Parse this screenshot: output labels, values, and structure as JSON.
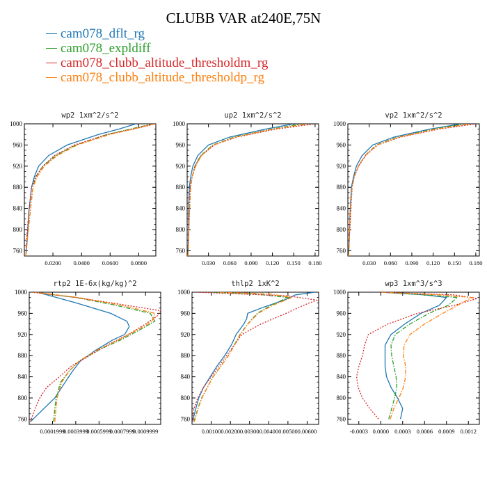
{
  "title": "CLUBB VAR at240E,75N",
  "legend": [
    {
      "label": "cam078_dflt_rg",
      "color": "#1f77b4"
    },
    {
      "label": "cam078_expldiff",
      "color": "#2ca02c"
    },
    {
      "label": "cam078_clubb_altitude_thresholdm_rg",
      "color": "#d62728"
    },
    {
      "label": "cam078_clubb_altitude_thresholdp_rg",
      "color": "#ff7f0e"
    }
  ],
  "chart_data": [
    {
      "type": "line",
      "title": "wp2 1xm^2/s^2",
      "ylim": [
        1000,
        750
      ],
      "yticks": [
        "760",
        "800",
        "840",
        "880",
        "920",
        "960",
        "1000"
      ],
      "xlim": [
        0,
        0.092
      ],
      "xticks": [
        "0.0200",
        "0.0400",
        "0.0600",
        "0.0800"
      ],
      "series": [
        {
          "y": [
            750,
            780,
            830,
            880,
            900,
            920,
            940,
            960,
            980,
            990,
            1000
          ],
          "x": [
            0.001,
            0.002,
            0.003,
            0.005,
            0.007,
            0.01,
            0.017,
            0.03,
            0.052,
            0.066,
            0.078
          ]
        },
        {
          "y": [
            750,
            780,
            830,
            880,
            900,
            920,
            940,
            960,
            980,
            990,
            1000
          ],
          "x": [
            0.001,
            0.002,
            0.004,
            0.006,
            0.008,
            0.013,
            0.022,
            0.036,
            0.058,
            0.074,
            0.09
          ]
        },
        {
          "y": [
            750,
            780,
            830,
            880,
            900,
            920,
            940,
            960,
            980,
            990,
            1000
          ],
          "x": [
            0.001,
            0.0015,
            0.003,
            0.005,
            0.008,
            0.013,
            0.021,
            0.035,
            0.058,
            0.076,
            0.092
          ]
        },
        {
          "y": [
            750,
            780,
            830,
            880,
            900,
            920,
            940,
            960,
            980,
            990,
            1000
          ],
          "x": [
            0.001,
            0.002,
            0.004,
            0.006,
            0.009,
            0.014,
            0.023,
            0.037,
            0.06,
            0.076,
            0.091
          ]
        }
      ]
    },
    {
      "type": "line",
      "title": "up2 1xm^2/s^2",
      "ylim": [
        1000,
        750
      ],
      "yticks": [
        "760",
        "800",
        "840",
        "880",
        "920",
        "960",
        "1000"
      ],
      "xlim": [
        0,
        0.185
      ],
      "xticks": [
        "0.030",
        "0.060",
        "0.090",
        "0.120",
        "0.150",
        "0.180"
      ],
      "series": [
        {
          "y": [
            750,
            780,
            830,
            880,
            900,
            920,
            940,
            960,
            975,
            990,
            1000
          ],
          "x": [
            0.001,
            0.002,
            0.002,
            0.003,
            0.005,
            0.008,
            0.015,
            0.03,
            0.06,
            0.11,
            0.15
          ]
        },
        {
          "y": [
            750,
            780,
            830,
            880,
            900,
            920,
            940,
            960,
            975,
            990,
            1000
          ],
          "x": [
            0.001,
            0.002,
            0.003,
            0.005,
            0.007,
            0.011,
            0.019,
            0.036,
            0.066,
            0.118,
            0.162
          ]
        },
        {
          "y": [
            750,
            780,
            830,
            880,
            900,
            920,
            940,
            960,
            975,
            990,
            1000
          ],
          "x": [
            0.001,
            0.002,
            0.003,
            0.004,
            0.007,
            0.011,
            0.02,
            0.038,
            0.07,
            0.125,
            0.18
          ]
        },
        {
          "y": [
            750,
            780,
            830,
            880,
            900,
            920,
            940,
            960,
            975,
            990,
            1000
          ],
          "x": [
            0.001,
            0.002,
            0.003,
            0.005,
            0.007,
            0.012,
            0.02,
            0.037,
            0.068,
            0.12,
            0.17
          ]
        }
      ]
    },
    {
      "type": "line",
      "title": "vp2 1xm^2/s^2",
      "ylim": [
        1000,
        750
      ],
      "yticks": [
        "760",
        "800",
        "840",
        "880",
        "920",
        "960",
        "1000"
      ],
      "xlim": [
        0,
        0.185
      ],
      "xticks": [
        "0.030",
        "0.060",
        "0.090",
        "0.120",
        "0.150",
        "0.180"
      ],
      "series": [
        {
          "y": [
            750,
            780,
            830,
            880,
            900,
            920,
            940,
            960,
            975,
            990,
            1000
          ],
          "x": [
            0.001,
            0.002,
            0.003,
            0.005,
            0.008,
            0.012,
            0.02,
            0.035,
            0.065,
            0.115,
            0.16
          ]
        },
        {
          "y": [
            750,
            780,
            830,
            880,
            900,
            920,
            940,
            960,
            975,
            990,
            1000
          ],
          "x": [
            0.001,
            0.002,
            0.003,
            0.006,
            0.009,
            0.015,
            0.024,
            0.04,
            0.07,
            0.12,
            0.165
          ]
        },
        {
          "y": [
            750,
            780,
            830,
            880,
            900,
            920,
            940,
            960,
            975,
            990,
            1000
          ],
          "x": [
            0.001,
            0.002,
            0.004,
            0.006,
            0.009,
            0.015,
            0.025,
            0.042,
            0.074,
            0.128,
            0.18
          ]
        },
        {
          "y": [
            750,
            780,
            830,
            880,
            900,
            920,
            940,
            960,
            975,
            990,
            1000
          ],
          "x": [
            0.001,
            0.002,
            0.003,
            0.006,
            0.009,
            0.015,
            0.024,
            0.041,
            0.072,
            0.124,
            0.172
          ]
        }
      ]
    },
    {
      "type": "line",
      "title": "rtp2 1E-6x(kg/kg)^2",
      "ylim": [
        1000,
        750
      ],
      "yticks": [
        "760",
        "800",
        "840",
        "880",
        "920",
        "960",
        "1000"
      ],
      "xlim": [
        0,
        0.00113
      ],
      "xticks": [
        "0.0001999",
        "0.0003999",
        "0.0005999",
        "0.0007999",
        "0.0009999"
      ],
      "series": [
        {
          "y": [
            755,
            800,
            830,
            850,
            870,
            890,
            910,
            920,
            935,
            945,
            960,
            980,
            1000
          ],
          "x": [
            1e-05,
            0.00022,
            0.00031,
            0.00037,
            0.00044,
            0.00057,
            0.00072,
            0.00082,
            0.00086,
            0.00084,
            0.0007,
            0.0004,
            7e-05
          ]
        },
        {
          "y": [
            755,
            780,
            800,
            830,
            850,
            870,
            890,
            910,
            930,
            945,
            960,
            975,
            990,
            1000
          ],
          "x": [
            0.00021,
            0.00022,
            0.00023,
            0.00027,
            0.00034,
            0.00043,
            0.00059,
            0.00079,
            0.00096,
            0.00108,
            0.00104,
            0.00075,
            0.0004,
            3e-05
          ]
        },
        {
          "y": [
            755,
            780,
            800,
            820,
            840,
            860,
            880,
            900,
            920,
            940,
            955,
            965,
            980,
            990,
            1000
          ],
          "x": [
            1e-05,
            5e-05,
            9e-05,
            0.00015,
            0.00026,
            0.00036,
            0.00052,
            0.00067,
            0.00085,
            0.001,
            0.0011,
            0.00113,
            0.0007,
            0.0004,
            2e-05
          ]
        },
        {
          "y": [
            755,
            780,
            800,
            830,
            850,
            870,
            890,
            910,
            930,
            945,
            960,
            975,
            990,
            1000
          ],
          "x": [
            0.00022,
            0.00023,
            0.00024,
            0.00028,
            0.00034,
            0.00043,
            0.00058,
            0.00077,
            0.00094,
            0.00106,
            0.00108,
            0.0008,
            0.00042,
            5e-05
          ]
        }
      ]
    },
    {
      "type": "line",
      "title": "thlp2 1xK^2",
      "ylim": [
        1000,
        750
      ],
      "yticks": [
        "760",
        "800",
        "840",
        "880",
        "920",
        "960",
        "1000"
      ],
      "xlim": [
        0,
        0.0066
      ],
      "xticks": [
        "0.00100",
        "0.00200",
        "0.00300",
        "0.00400",
        "0.00500",
        "0.00600"
      ],
      "series": [
        {
          "y": [
            755,
            780,
            800,
            820,
            840,
            860,
            880,
            900,
            920,
            940,
            950,
            960,
            970,
            985,
            995,
            1000
          ],
          "x": [
            2e-05,
            0.0002,
            0.00035,
            0.0006,
            0.00095,
            0.0013,
            0.0017,
            0.00205,
            0.0023,
            0.0027,
            0.00285,
            0.0029,
            0.0036,
            0.0048,
            0.0054,
            0.0064
          ]
        },
        {
          "y": [
            755,
            780,
            800,
            820,
            840,
            860,
            880,
            900,
            920,
            940,
            960,
            975,
            990,
            997,
            1000
          ],
          "x": [
            0.0001,
            0.0003,
            0.0005,
            0.0008,
            0.0011,
            0.0015,
            0.0019,
            0.0022,
            0.0025,
            0.0029,
            0.0034,
            0.0041,
            0.005,
            0.0032,
            0.0008
          ]
        },
        {
          "y": [
            755,
            780,
            800,
            820,
            840,
            860,
            880,
            900,
            920,
            940,
            960,
            975,
            985,
            993,
            1000
          ],
          "x": [
            1e-05,
            0.0001,
            0.0003,
            0.0006,
            0.001,
            0.0014,
            0.0018,
            0.0022,
            0.0026,
            0.0036,
            0.0049,
            0.0058,
            0.0065,
            0.005,
            0.0002
          ]
        },
        {
          "y": [
            755,
            780,
            800,
            820,
            840,
            860,
            880,
            900,
            920,
            940,
            960,
            975,
            990,
            997,
            1000
          ],
          "x": [
            0.00012,
            0.00032,
            0.00052,
            0.0008,
            0.0011,
            0.0015,
            0.0019,
            0.00222,
            0.00252,
            0.00292,
            0.00345,
            0.0042,
            0.0052,
            0.004,
            0.0014
          ]
        }
      ]
    },
    {
      "type": "line",
      "title": "wp3 1xm^3/s^3",
      "ylim": [
        1000,
        750
      ],
      "yticks": [
        "760",
        "800",
        "840",
        "880",
        "920",
        "960",
        "1000"
      ],
      "xlim": [
        -0.00045,
        0.00135
      ],
      "xticks": [
        "-0.0003",
        "0.0000",
        "0.0003",
        "0.0006",
        "0.0009",
        "0.0012"
      ],
      "series": [
        {
          "y": [
            760,
            780,
            800,
            820,
            840,
            860,
            880,
            900,
            920,
            940,
            960,
            975,
            990,
            995,
            1000
          ],
          "x": [
            0.00027,
            0.0003,
            0.00023,
            0.00014,
            8e-05,
            6e-05,
            6e-05,
            6e-05,
            0.00014,
            0.00033,
            0.00055,
            0.0008,
            0.0009,
            0.0006,
            0.0
          ]
        },
        {
          "y": [
            760,
            780,
            800,
            820,
            840,
            860,
            880,
            900,
            920,
            940,
            960,
            975,
            990,
            995,
            1000
          ],
          "x": [
            0.00011,
            0.00015,
            0.00019,
            0.00022,
            0.00021,
            0.00018,
            0.00015,
            0.00014,
            0.0002,
            0.0004,
            0.00066,
            0.00092,
            0.00105,
            0.0006,
            0.0
          ]
        },
        {
          "y": [
            760,
            780,
            800,
            820,
            840,
            860,
            880,
            900,
            920,
            940,
            960,
            975,
            988,
            995,
            1000
          ],
          "x": [
            -3e-05,
            -0.00015,
            -0.00025,
            -0.00031,
            -0.00033,
            -0.0003,
            -0.00025,
            -0.00022,
            -0.00017,
            0.0001,
            0.0005,
            0.001,
            0.00132,
            0.001,
            0.0
          ]
        },
        {
          "y": [
            760,
            780,
            800,
            820,
            840,
            860,
            880,
            900,
            920,
            940,
            960,
            975,
            990,
            995,
            1000
          ],
          "x": [
            0.00013,
            0.00018,
            0.00025,
            0.00031,
            0.00034,
            0.00034,
            0.00031,
            0.00032,
            0.0004,
            0.0006,
            0.00085,
            0.00105,
            0.00125,
            0.0008,
            0.0
          ]
        }
      ]
    }
  ]
}
